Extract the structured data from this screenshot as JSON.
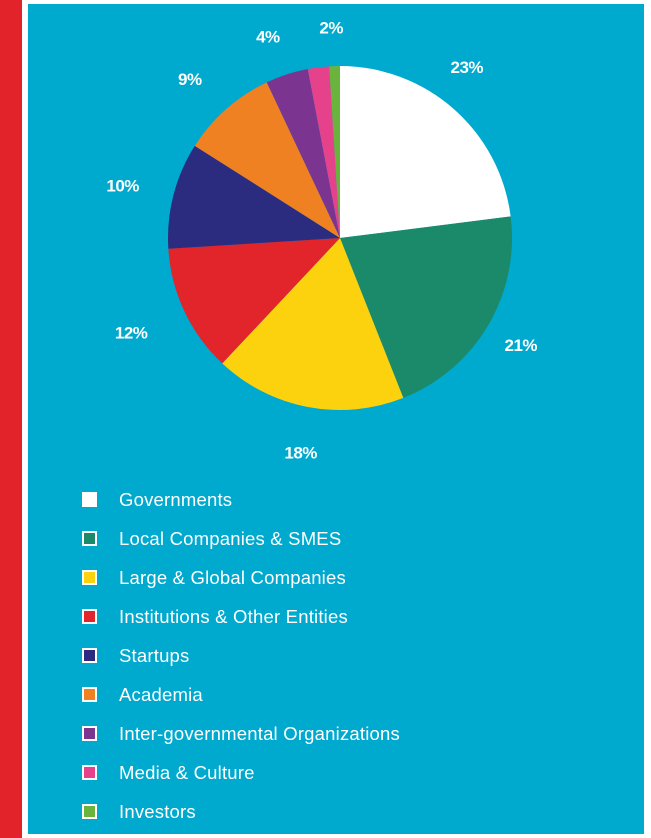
{
  "chart_data": {
    "type": "pie",
    "title": "",
    "slices": [
      {
        "label": "Governments",
        "value": 23,
        "value_label": "23%",
        "color": "#ffffff"
      },
      {
        "label": "Local Companies & SMES",
        "value": 21,
        "value_label": "21%",
        "color": "#1a8a6a"
      },
      {
        "label": "Large & Global Companies",
        "value": 18,
        "value_label": "18%",
        "color": "#fcd20f"
      },
      {
        "label": "Institutions & Other Entities",
        "value": 12,
        "value_label": "12%",
        "color": "#e2242b"
      },
      {
        "label": "Startups",
        "value": 10,
        "value_label": "10%",
        "color": "#2b2b7f"
      },
      {
        "label": "Academia",
        "value": 9,
        "value_label": "9%",
        "color": "#f08123"
      },
      {
        "label": "Inter-governmental Organizations",
        "value": 4,
        "value_label": "4%",
        "color": "#7b3590"
      },
      {
        "label": "Media & Culture",
        "value": 2,
        "value_label": "2%",
        "color": "#e6428c"
      },
      {
        "label": "Investors",
        "value": 1,
        "value_label": "",
        "color": "#6ab43e"
      }
    ],
    "legend_placement": "bottom"
  },
  "colors": {
    "background": "#00a9ce",
    "left_band": "#e2232a"
  }
}
